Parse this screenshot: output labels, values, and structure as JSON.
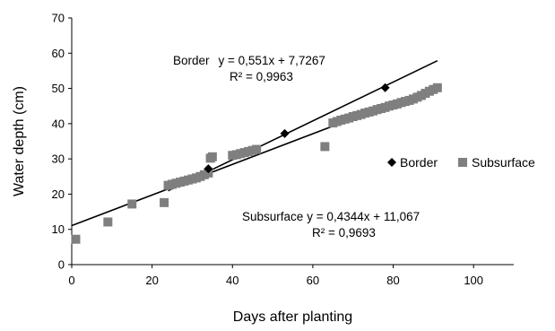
{
  "chart_data": {
    "type": "scatter",
    "title": "",
    "xlabel": "Days after planting",
    "ylabel": "Water depth (cm)",
    "xlim": [
      0,
      110
    ],
    "ylim": [
      0,
      70
    ],
    "xticks": [
      0,
      20,
      40,
      60,
      80,
      100
    ],
    "yticks": [
      0,
      10,
      20,
      30,
      40,
      50,
      60,
      70
    ],
    "grid": false,
    "legend_position": "right",
    "series": [
      {
        "name": "Border",
        "marker": "diamond",
        "color": "#000000",
        "x": [
          34,
          53,
          78
        ],
        "y": [
          27.2,
          37.2,
          50.2
        ],
        "trendline": {
          "slope": 0.551,
          "intercept": 7.7267,
          "x_range": [
            24,
            91
          ],
          "equation": "y = 0,551x + 7,7267",
          "r2_label": "R² = 0,9963",
          "label_prefix": "Border"
        }
      },
      {
        "name": "Subsurface",
        "marker": "square",
        "color": "#7f7f7f",
        "x": [
          1,
          9,
          15,
          23,
          24,
          25,
          26,
          27,
          28,
          29,
          30,
          31,
          32,
          33,
          34,
          34.5,
          35,
          40,
          41,
          42,
          43,
          44,
          45,
          46,
          63,
          65,
          66,
          67,
          68,
          69,
          70,
          71,
          72,
          73,
          74,
          75,
          76,
          77,
          78,
          79,
          80,
          81,
          82,
          83,
          84,
          85,
          86,
          87,
          88,
          89,
          90,
          91
        ],
        "y": [
          7.2,
          12.1,
          17.2,
          17.6,
          22.5,
          22.8,
          23.1,
          23.4,
          23.7,
          24.0,
          24.3,
          24.6,
          25.0,
          25.5,
          26.0,
          30.2,
          30.6,
          31.0,
          31.2,
          31.5,
          31.8,
          32.1,
          32.4,
          32.7,
          33.5,
          40.2,
          40.6,
          41.0,
          41.3,
          41.6,
          42.0,
          42.3,
          42.6,
          43.0,
          43.3,
          43.6,
          44.0,
          44.3,
          44.6,
          45.0,
          45.3,
          45.6,
          46.0,
          46.3,
          46.6,
          47.0,
          47.5,
          48.0,
          48.6,
          49.2,
          49.7,
          50.2
        ],
        "trendline": {
          "slope": 0.4344,
          "intercept": 11.067,
          "x_range": [
            0,
            91
          ],
          "equation": "y = 0,4344x + 11,067",
          "r2_label": "R² = 0,9693",
          "label_prefix": "Subsurface"
        }
      }
    ]
  }
}
